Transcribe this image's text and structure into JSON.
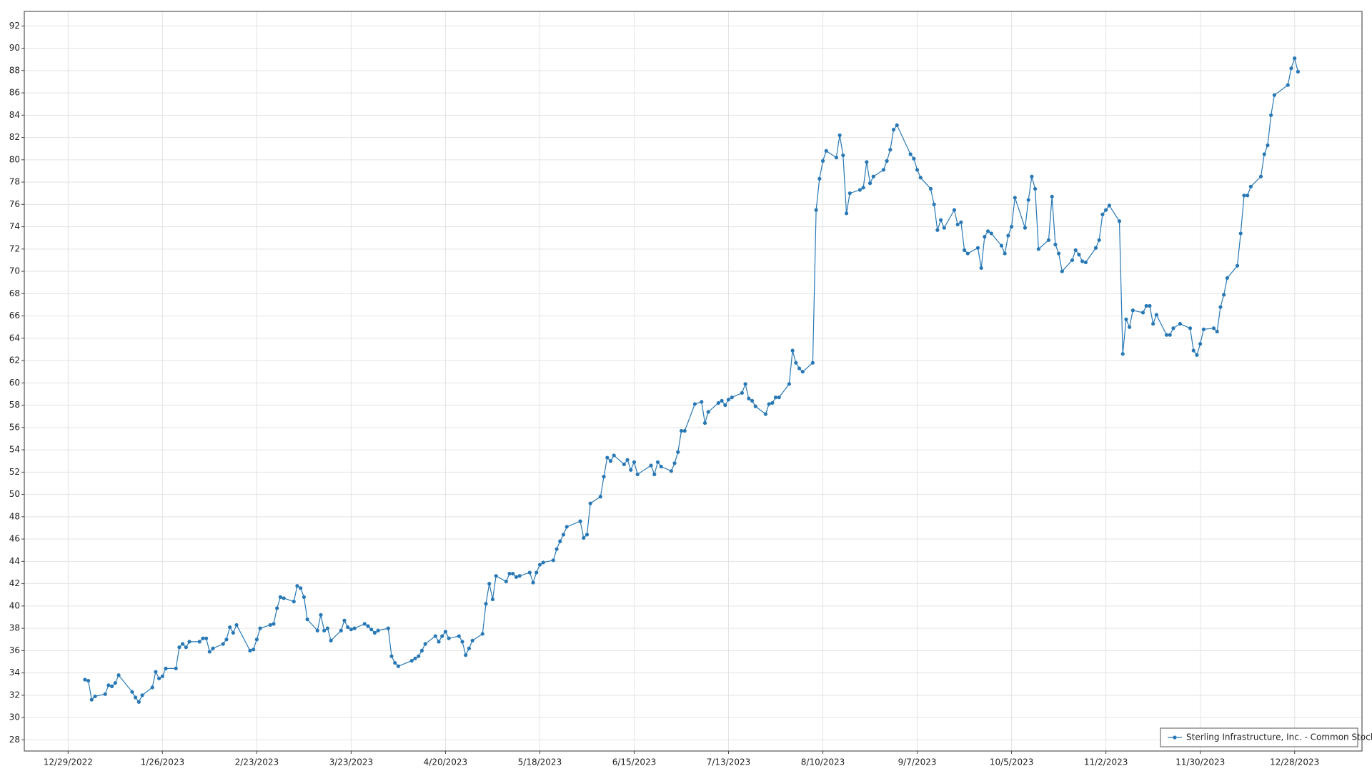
{
  "chart_data": {
    "type": "line",
    "x": [
      "1/3/2023",
      "1/4/2023",
      "1/5/2023",
      "1/6/2023",
      "1/9/2023",
      "1/10/2023",
      "1/11/2023",
      "1/12/2023",
      "1/13/2023",
      "1/17/2023",
      "1/18/2023",
      "1/19/2023",
      "1/20/2023",
      "1/23/2023",
      "1/24/2023",
      "1/25/2023",
      "1/26/2023",
      "1/27/2023",
      "1/30/2023",
      "1/31/2023",
      "2/1/2023",
      "2/2/2023",
      "2/3/2023",
      "2/6/2023",
      "2/7/2023",
      "2/8/2023",
      "2/9/2023",
      "2/10/2023",
      "2/13/2023",
      "2/14/2023",
      "2/15/2023",
      "2/16/2023",
      "2/17/2023",
      "2/21/2023",
      "2/22/2023",
      "2/23/2023",
      "2/24/2023",
      "2/27/2023",
      "2/28/2023",
      "3/1/2023",
      "3/2/2023",
      "3/3/2023",
      "3/6/2023",
      "3/7/2023",
      "3/8/2023",
      "3/9/2023",
      "3/10/2023",
      "3/13/2023",
      "3/14/2023",
      "3/15/2023",
      "3/16/2023",
      "3/17/2023",
      "3/20/2023",
      "3/21/2023",
      "3/22/2023",
      "3/23/2023",
      "3/24/2023",
      "3/27/2023",
      "3/28/2023",
      "3/29/2023",
      "3/30/2023",
      "3/31/2023",
      "4/3/2023",
      "4/4/2023",
      "4/5/2023",
      "4/6/2023",
      "4/10/2023",
      "4/11/2023",
      "4/12/2023",
      "4/13/2023",
      "4/14/2023",
      "4/17/2023",
      "4/18/2023",
      "4/19/2023",
      "4/20/2023",
      "4/21/2023",
      "4/24/2023",
      "4/25/2023",
      "4/26/2023",
      "4/27/2023",
      "4/28/2023",
      "5/1/2023",
      "5/2/2023",
      "5/3/2023",
      "5/4/2023",
      "5/5/2023",
      "5/8/2023",
      "5/9/2023",
      "5/10/2023",
      "5/11/2023",
      "5/12/2023",
      "5/15/2023",
      "5/16/2023",
      "5/17/2023",
      "5/18/2023",
      "5/19/2023",
      "5/22/2023",
      "5/23/2023",
      "5/24/2023",
      "5/25/2023",
      "5/26/2023",
      "5/30/2023",
      "5/31/2023",
      "6/1/2023",
      "6/2/2023",
      "6/5/2023",
      "6/6/2023",
      "6/7/2023",
      "6/8/2023",
      "6/9/2023",
      "6/12/2023",
      "6/13/2023",
      "6/14/2023",
      "6/15/2023",
      "6/16/2023",
      "6/20/2023",
      "6/21/2023",
      "6/22/2023",
      "6/23/2023",
      "6/26/2023",
      "6/27/2023",
      "6/28/2023",
      "6/29/2023",
      "6/30/2023",
      "7/3/2023",
      "7/5/2023",
      "7/6/2023",
      "7/7/2023",
      "7/10/2023",
      "7/11/2023",
      "7/12/2023",
      "7/13/2023",
      "7/14/2023",
      "7/17/2023",
      "7/18/2023",
      "7/19/2023",
      "7/20/2023",
      "7/21/2023",
      "7/24/2023",
      "7/25/2023",
      "7/26/2023",
      "7/27/2023",
      "7/28/2023",
      "7/31/2023",
      "8/1/2023",
      "8/2/2023",
      "8/3/2023",
      "8/4/2023",
      "8/7/2023",
      "8/8/2023",
      "8/9/2023",
      "8/10/2023",
      "8/11/2023",
      "8/14/2023",
      "8/15/2023",
      "8/16/2023",
      "8/17/2023",
      "8/18/2023",
      "8/21/2023",
      "8/22/2023",
      "8/23/2023",
      "8/24/2023",
      "8/25/2023",
      "8/28/2023",
      "8/29/2023",
      "8/30/2023",
      "8/31/2023",
      "9/1/2023",
      "9/5/2023",
      "9/6/2023",
      "9/7/2023",
      "9/8/2023",
      "9/11/2023",
      "9/12/2023",
      "9/13/2023",
      "9/14/2023",
      "9/15/2023",
      "9/18/2023",
      "9/19/2023",
      "9/20/2023",
      "9/21/2023",
      "9/22/2023",
      "9/25/2023",
      "9/26/2023",
      "9/27/2023",
      "9/28/2023",
      "9/29/2023",
      "10/2/2023",
      "10/3/2023",
      "10/4/2023",
      "10/5/2023",
      "10/6/2023",
      "10/9/2023",
      "10/10/2023",
      "10/11/2023",
      "10/12/2023",
      "10/13/2023",
      "10/16/2023",
      "10/17/2023",
      "10/18/2023",
      "10/19/2023",
      "10/20/2023",
      "10/23/2023",
      "10/24/2023",
      "10/25/2023",
      "10/26/2023",
      "10/27/2023",
      "10/30/2023",
      "10/31/2023",
      "11/1/2023",
      "11/2/2023",
      "11/3/2023",
      "11/6/2023",
      "11/7/2023",
      "11/8/2023",
      "11/9/2023",
      "11/10/2023",
      "11/13/2023",
      "11/14/2023",
      "11/15/2023",
      "11/16/2023",
      "11/17/2023",
      "11/20/2023",
      "11/21/2023",
      "11/22/2023",
      "11/24/2023",
      "11/27/2023",
      "11/28/2023",
      "11/29/2023",
      "11/30/2023",
      "12/1/2023",
      "12/4/2023",
      "12/5/2023",
      "12/6/2023",
      "12/7/2023",
      "12/8/2023",
      "12/11/2023",
      "12/12/2023",
      "12/13/2023",
      "12/14/2023",
      "12/15/2023",
      "12/18/2023",
      "12/19/2023",
      "12/20/2023",
      "12/21/2023",
      "12/22/2023",
      "12/26/2023",
      "12/27/2023",
      "12/28/2023",
      "12/29/2023"
    ],
    "series": [
      {
        "name": "Sterling Infrastructure, Inc. - Common Stock",
        "color": "#2878b5",
        "values": [
          33.4,
          33.3,
          31.6,
          31.9,
          32.1,
          32.9,
          32.8,
          33.1,
          33.8,
          32.3,
          31.8,
          31.4,
          32.0,
          32.7,
          34.1,
          33.5,
          33.7,
          34.4,
          34.4,
          36.3,
          36.6,
          36.3,
          36.8,
          36.8,
          37.1,
          37.1,
          35.9,
          36.2,
          36.6,
          37.0,
          38.1,
          37.6,
          38.3,
          36.0,
          36.1,
          37.0,
          38.0,
          38.3,
          38.4,
          39.8,
          40.8,
          40.7,
          40.4,
          41.8,
          41.6,
          40.8,
          38.8,
          37.8,
          39.2,
          37.8,
          38.0,
          36.9,
          37.8,
          38.7,
          38.1,
          37.9,
          38.0,
          38.4,
          38.2,
          37.9,
          37.6,
          37.8,
          38.0,
          35.5,
          34.9,
          34.6,
          35.1,
          35.3,
          35.5,
          36.0,
          36.6,
          37.3,
          36.8,
          37.3,
          37.7,
          37.1,
          37.3,
          36.8,
          35.6,
          36.2,
          36.9,
          37.5,
          40.2,
          42.0,
          40.6,
          42.7,
          42.2,
          42.9,
          42.9,
          42.6,
          42.7,
          43.0,
          42.1,
          43.0,
          43.7,
          43.9,
          44.1,
          45.1,
          45.8,
          46.4,
          47.1,
          47.6,
          46.1,
          46.4,
          49.2,
          49.8,
          51.6,
          53.3,
          53.0,
          53.5,
          52.7,
          53.1,
          52.2,
          52.9,
          51.8,
          52.6,
          51.8,
          52.9,
          52.5,
          52.1,
          52.8,
          53.8,
          55.7,
          55.7,
          58.1,
          58.3,
          56.4,
          57.4,
          58.2,
          58.4,
          58.0,
          58.5,
          58.7,
          59.1,
          59.9,
          58.6,
          58.4,
          57.9,
          57.2,
          58.1,
          58.2,
          58.7,
          58.7,
          59.9,
          62.9,
          61.8,
          61.3,
          61.0,
          61.8,
          75.5,
          78.3,
          79.9,
          80.8,
          80.2,
          82.2,
          80.4,
          75.2,
          77.0,
          77.3,
          77.5,
          79.8,
          77.9,
          78.5,
          79.1,
          79.9,
          80.9,
          82.7,
          83.1,
          80.5,
          80.1,
          79.1,
          78.4,
          77.4,
          76.0,
          73.7,
          74.6,
          73.9,
          75.5,
          74.2,
          74.4,
          71.9,
          71.6,
          72.1,
          70.3,
          73.1,
          73.6,
          73.4,
          72.3,
          71.6,
          73.2,
          74.0,
          76.6,
          73.9,
          76.4,
          78.5,
          77.4,
          72.0,
          72.8,
          76.7,
          72.4,
          71.6,
          70.0,
          71.0,
          71.9,
          71.5,
          70.9,
          70.8,
          72.1,
          72.8,
          75.1,
          75.5,
          75.9,
          74.5,
          62.6,
          65.7,
          65.0,
          66.5,
          66.3,
          66.9,
          66.9,
          65.3,
          66.1,
          64.3,
          64.3,
          64.9,
          65.3,
          64.9,
          62.9,
          62.5,
          63.5,
          64.8,
          64.9,
          64.6,
          66.8,
          67.9,
          69.4,
          70.5,
          73.4,
          76.8,
          76.8,
          77.6,
          78.5,
          80.5,
          81.3,
          84.0,
          85.8,
          86.7,
          88.2,
          89.1,
          87.9
        ]
      }
    ],
    "xlim": [
      "12/16/2022",
      "1/17/2024"
    ],
    "xticks": [
      "12/29/2022",
      "1/26/2023",
      "2/23/2023",
      "3/23/2023",
      "4/20/2023",
      "5/18/2023",
      "6/15/2023",
      "7/13/2023",
      "8/10/2023",
      "9/7/2023",
      "10/5/2023",
      "11/2/2023",
      "11/30/2023",
      "12/28/2023"
    ],
    "ylim": [
      27,
      93.3
    ],
    "yticks": [
      28,
      30,
      32,
      34,
      36,
      38,
      40,
      42,
      44,
      46,
      48,
      50,
      52,
      54,
      56,
      58,
      60,
      62,
      64,
      66,
      68,
      70,
      72,
      74,
      76,
      78,
      80,
      82,
      84,
      86,
      88,
      90,
      92
    ],
    "grid": true,
    "legend": "lower right"
  }
}
